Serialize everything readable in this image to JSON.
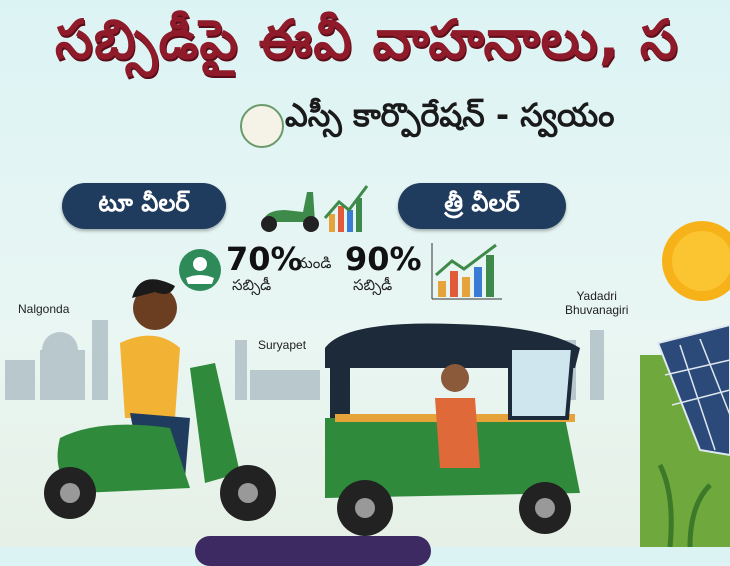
{
  "title": "సబ్సిడీపై ఈవీ వాహనాలు, స",
  "subtitle": "ఎస్సీ కార్పొరేషన్ - స్వయం",
  "pills": {
    "two_wheeler": "టూ వీలర్",
    "three_wheeler": "త్రీ వీలర్"
  },
  "subsidy": {
    "from_value": "70%",
    "connector": "నుండి",
    "to_value": "90%",
    "from_label": "సబ్సిడీ",
    "to_label": "సబ్సిడీ"
  },
  "places": {
    "nalgonda": "Nalgonda",
    "suryapet": "Suryapet",
    "yadadri_line1": "Yadadri",
    "yadadri_line2": "Bhuvanagiri"
  },
  "icons": [
    "telangana-seal-icon",
    "scooter-icon",
    "growth-chart-icon",
    "money-hand-icon",
    "sun-icon",
    "solar-panel-icon"
  ],
  "colors": {
    "title": "#8e1a2a",
    "pill": "#1f3b5e",
    "scooter": "#2f8a3c",
    "auto": "#2f8a3c",
    "auto_roof": "#1d2a3a",
    "background": "#dcf3f4"
  }
}
